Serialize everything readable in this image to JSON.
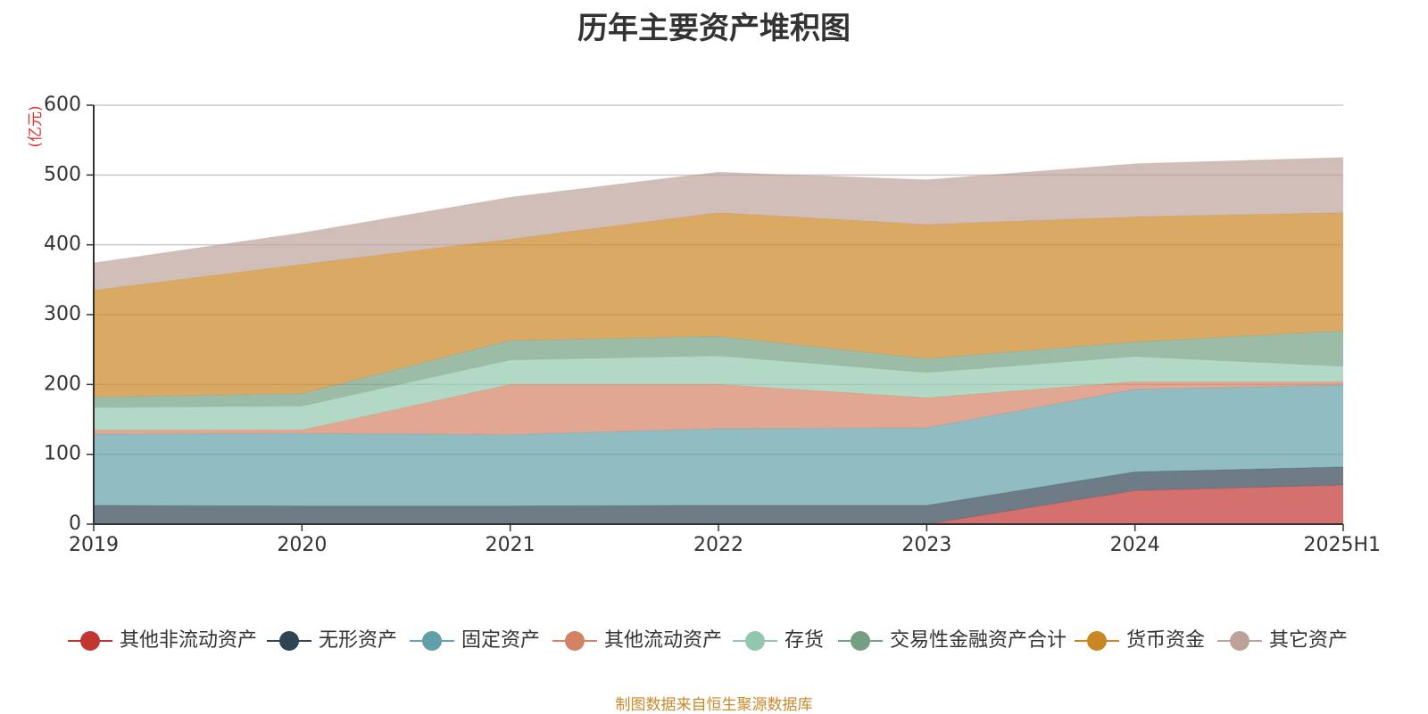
{
  "chart_data": {
    "type": "area",
    "title": "历年主要资产堆积图",
    "unit": "(亿元)",
    "categories": [
      "2019",
      "2020",
      "2021",
      "2022",
      "2023",
      "2024",
      "2025H1"
    ],
    "ylim": [
      0,
      600
    ],
    "yticks": [
      0,
      100,
      200,
      300,
      400,
      500,
      600
    ],
    "grid": true,
    "legend_position": "bottom",
    "series": [
      {
        "name": "其他非流动资产",
        "color": "#c23531",
        "values": [
          0,
          0,
          0,
          0,
          0,
          48,
          56
        ]
      },
      {
        "name": "无形资产",
        "color": "#2f4554",
        "values": [
          27,
          26,
          26,
          27,
          27,
          27,
          26
        ]
      },
      {
        "name": "固定资产",
        "color": "#61a0a8",
        "values": [
          102,
          104,
          102,
          110,
          111,
          118,
          117
        ]
      },
      {
        "name": "其他流动资产",
        "color": "#d48265",
        "values": [
          6,
          5,
          72,
          63,
          43,
          11,
          5
        ]
      },
      {
        "name": "存货",
        "color": "#91c7ae",
        "values": [
          32,
          34,
          35,
          41,
          36,
          36,
          22
        ]
      },
      {
        "name": "交易性金融资产合计",
        "color": "#749f83",
        "values": [
          15,
          18,
          28,
          28,
          20,
          21,
          51
        ]
      },
      {
        "name": "货币资金",
        "color": "#ca8622",
        "values": [
          153,
          185,
          145,
          177,
          192,
          179,
          169
        ]
      },
      {
        "name": "其它资产",
        "color": "#bda29a",
        "values": [
          39,
          45,
          60,
          58,
          64,
          76,
          79
        ]
      }
    ]
  },
  "source_note": "制图数据来自恒生聚源数据库"
}
